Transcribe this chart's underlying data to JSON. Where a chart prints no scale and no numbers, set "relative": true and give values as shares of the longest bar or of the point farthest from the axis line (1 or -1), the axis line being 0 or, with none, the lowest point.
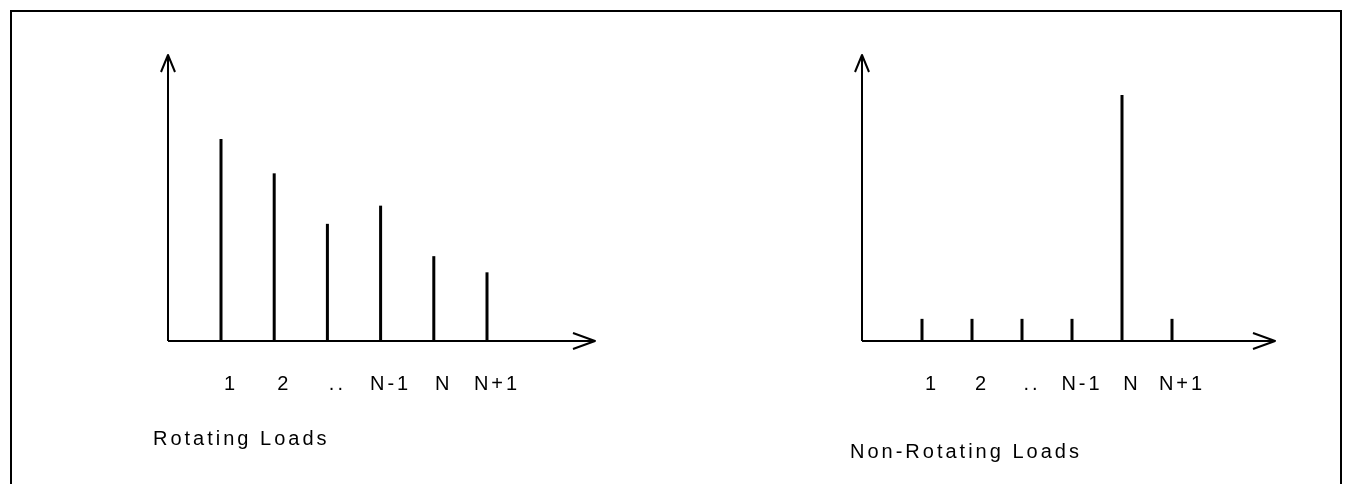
{
  "chart_data": [
    {
      "type": "bar",
      "relative": true,
      "categories": [
        "1",
        "2",
        "..",
        "N-1",
        "N",
        "N+1"
      ],
      "values": [
        1,
        0.83,
        0.58,
        0.67,
        0.42,
        0.34
      ],
      "color": "#000000",
      "xlabel": "Rotating Loads"
    },
    {
      "type": "bar",
      "relative": true,
      "categories": [
        "1",
        "2",
        "..",
        "N-1",
        "N",
        "N+1"
      ],
      "values": [
        0.09,
        0.09,
        0.09,
        0.09,
        1,
        0.09
      ],
      "color": "#000000",
      "xlabel": "Non-Rotating Loads"
    }
  ]
}
